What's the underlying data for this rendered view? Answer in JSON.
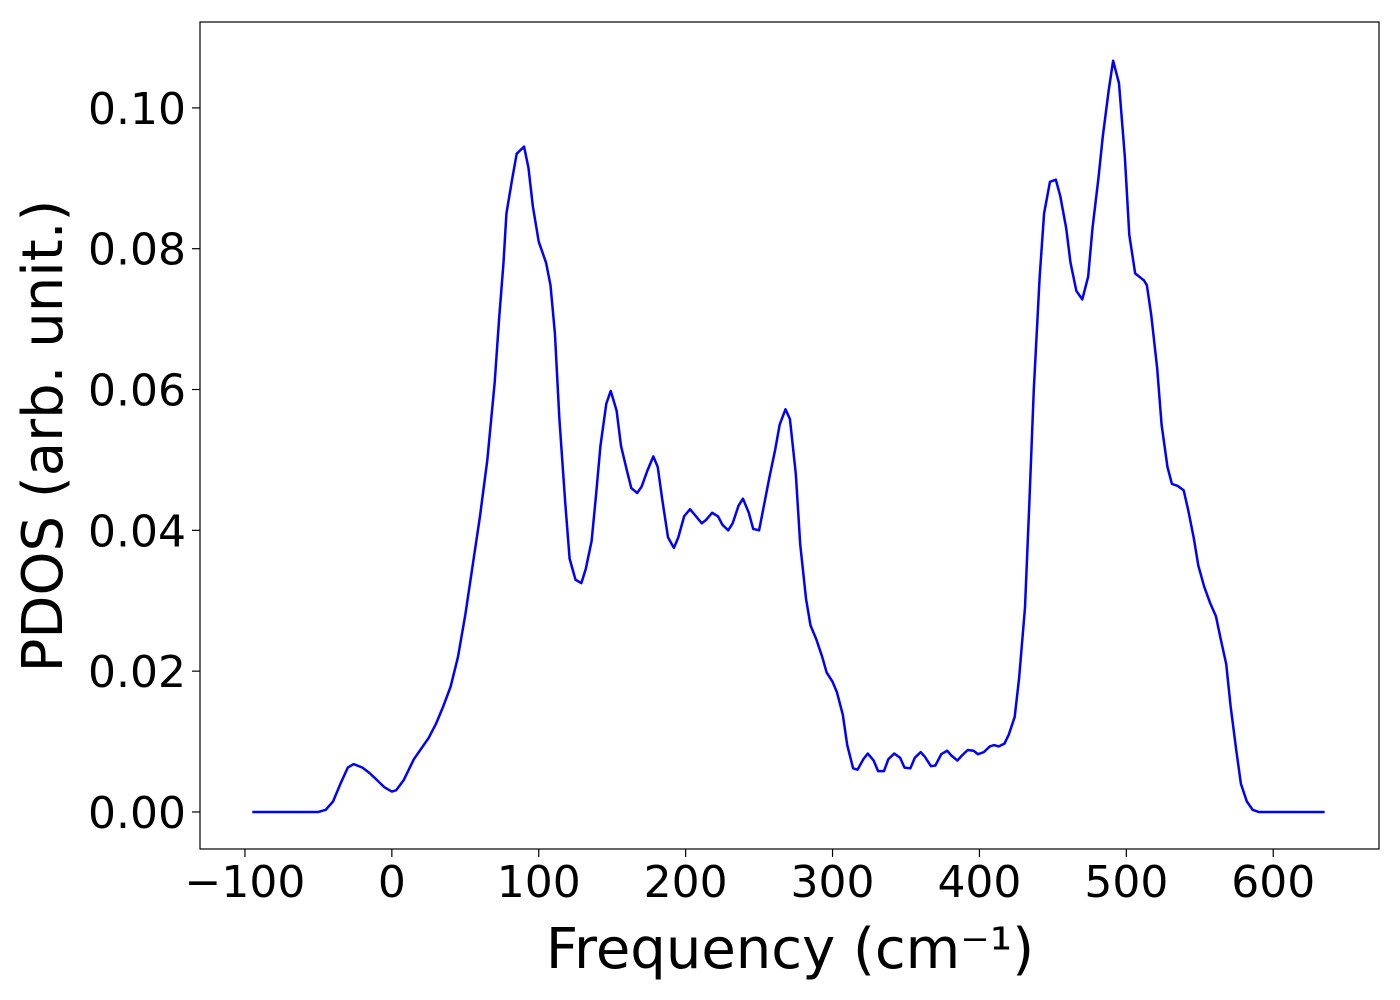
{
  "chart_data": {
    "type": "line",
    "xlabel": "Frequency (cm⁻¹)",
    "ylabel": "PDOS (arb. unit.)",
    "x": [
      -95,
      -50,
      -45,
      -40,
      -35,
      -30,
      -26,
      -20,
      -15,
      -10,
      -5,
      0,
      3,
      8,
      15,
      25,
      30,
      35,
      40,
      45,
      50,
      55,
      60,
      65,
      70,
      73,
      76,
      78,
      82,
      85,
      90,
      93,
      96,
      100,
      105,
      108,
      111,
      114,
      118,
      121,
      125,
      129,
      132,
      136,
      139,
      142,
      146,
      149,
      153,
      156,
      160,
      163,
      167,
      170,
      174,
      178,
      181,
      184,
      188,
      192,
      195,
      199,
      203,
      207,
      211,
      214,
      218,
      222,
      225,
      229,
      232,
      236,
      239,
      243,
      246,
      250,
      253,
      257,
      261,
      264,
      268,
      271,
      275,
      278,
      282,
      285,
      289,
      293,
      296,
      300,
      303,
      307,
      310,
      314,
      317,
      321,
      324,
      328,
      331,
      335,
      338,
      342,
      346,
      349,
      353,
      356,
      360,
      363,
      367,
      370,
      374,
      378,
      381,
      385,
      388,
      392,
      396,
      399,
      403,
      407,
      410,
      413,
      417,
      420,
      424,
      427,
      431,
      434,
      437,
      441,
      444,
      448,
      452,
      455,
      459,
      462,
      466,
      470,
      474,
      477,
      481,
      484,
      488,
      491,
      495,
      499,
      502,
      506,
      512,
      514,
      517,
      521,
      524,
      528,
      531,
      535,
      539,
      542,
      546,
      549,
      553,
      557,
      561,
      564,
      568,
      571,
      575,
      578,
      582,
      586,
      590,
      635
    ],
    "series": [
      {
        "name": "PDOS",
        "color": "#0000ff",
        "values": [
          0,
          0,
          0.0003,
          0.0015,
          0.004,
          0.0063,
          0.0068,
          0.0063,
          0.0055,
          0.0045,
          0.0035,
          0.0029,
          0.0031,
          0.0045,
          0.0075,
          0.0105,
          0.0125,
          0.015,
          0.0178,
          0.022,
          0.028,
          0.035,
          0.042,
          0.05,
          0.061,
          0.07,
          0.078,
          0.085,
          0.09,
          0.0935,
          0.0945,
          0.0915,
          0.086,
          0.081,
          0.078,
          0.0748,
          0.068,
          0.056,
          0.044,
          0.036,
          0.033,
          0.0325,
          0.0345,
          0.0385,
          0.045,
          0.052,
          0.058,
          0.0598,
          0.057,
          0.052,
          0.0485,
          0.046,
          0.0453,
          0.0462,
          0.0485,
          0.0505,
          0.049,
          0.0445,
          0.039,
          0.0375,
          0.039,
          0.042,
          0.043,
          0.042,
          0.041,
          0.0415,
          0.0425,
          0.042,
          0.0408,
          0.04,
          0.041,
          0.0435,
          0.0445,
          0.0425,
          0.0402,
          0.04,
          0.0432,
          0.0475,
          0.0515,
          0.055,
          0.0572,
          0.0558,
          0.048,
          0.038,
          0.0302,
          0.0265,
          0.0245,
          0.022,
          0.0198,
          0.0185,
          0.017,
          0.0138,
          0.0095,
          0.0062,
          0.006,
          0.0075,
          0.0083,
          0.0073,
          0.0058,
          0.0058,
          0.0075,
          0.0083,
          0.0077,
          0.0063,
          0.0062,
          0.0077,
          0.0085,
          0.0078,
          0.0065,
          0.0066,
          0.0082,
          0.0087,
          0.008,
          0.0073,
          0.008,
          0.0088,
          0.0087,
          0.0082,
          0.0085,
          0.0093,
          0.0095,
          0.0093,
          0.0097,
          0.011,
          0.0135,
          0.019,
          0.029,
          0.044,
          0.06,
          0.076,
          0.085,
          0.0895,
          0.0898,
          0.0875,
          0.083,
          0.078,
          0.074,
          0.0728,
          0.076,
          0.083,
          0.09,
          0.096,
          0.1025,
          0.1067,
          0.1035,
          0.093,
          0.082,
          0.0765,
          0.0755,
          0.0748,
          0.0705,
          0.063,
          0.055,
          0.049,
          0.0466,
          0.0463,
          0.0457,
          0.043,
          0.0388,
          0.035,
          0.032,
          0.0297,
          0.0278,
          0.0248,
          0.021,
          0.015,
          0.0085,
          0.004,
          0.0015,
          0.0003,
          0,
          0
        ]
      }
    ],
    "xlim": [
      -130.6,
      672
    ],
    "ylim": [
      -0.00526,
      0.1122
    ],
    "xticks": [
      {
        "value": -100,
        "label": "−100"
      },
      0,
      100,
      200,
      300,
      400,
      500,
      600
    ],
    "yticks": [
      {
        "value": 0,
        "label": "0.00"
      },
      {
        "value": 0.02,
        "label": "0.02"
      },
      {
        "value": 0.04,
        "label": "0.04"
      },
      {
        "value": 0.06,
        "label": "0.06"
      },
      {
        "value": 0.08,
        "label": "0.08"
      },
      {
        "value": 0.1,
        "label": "0.10"
      }
    ],
    "grid": false
  }
}
